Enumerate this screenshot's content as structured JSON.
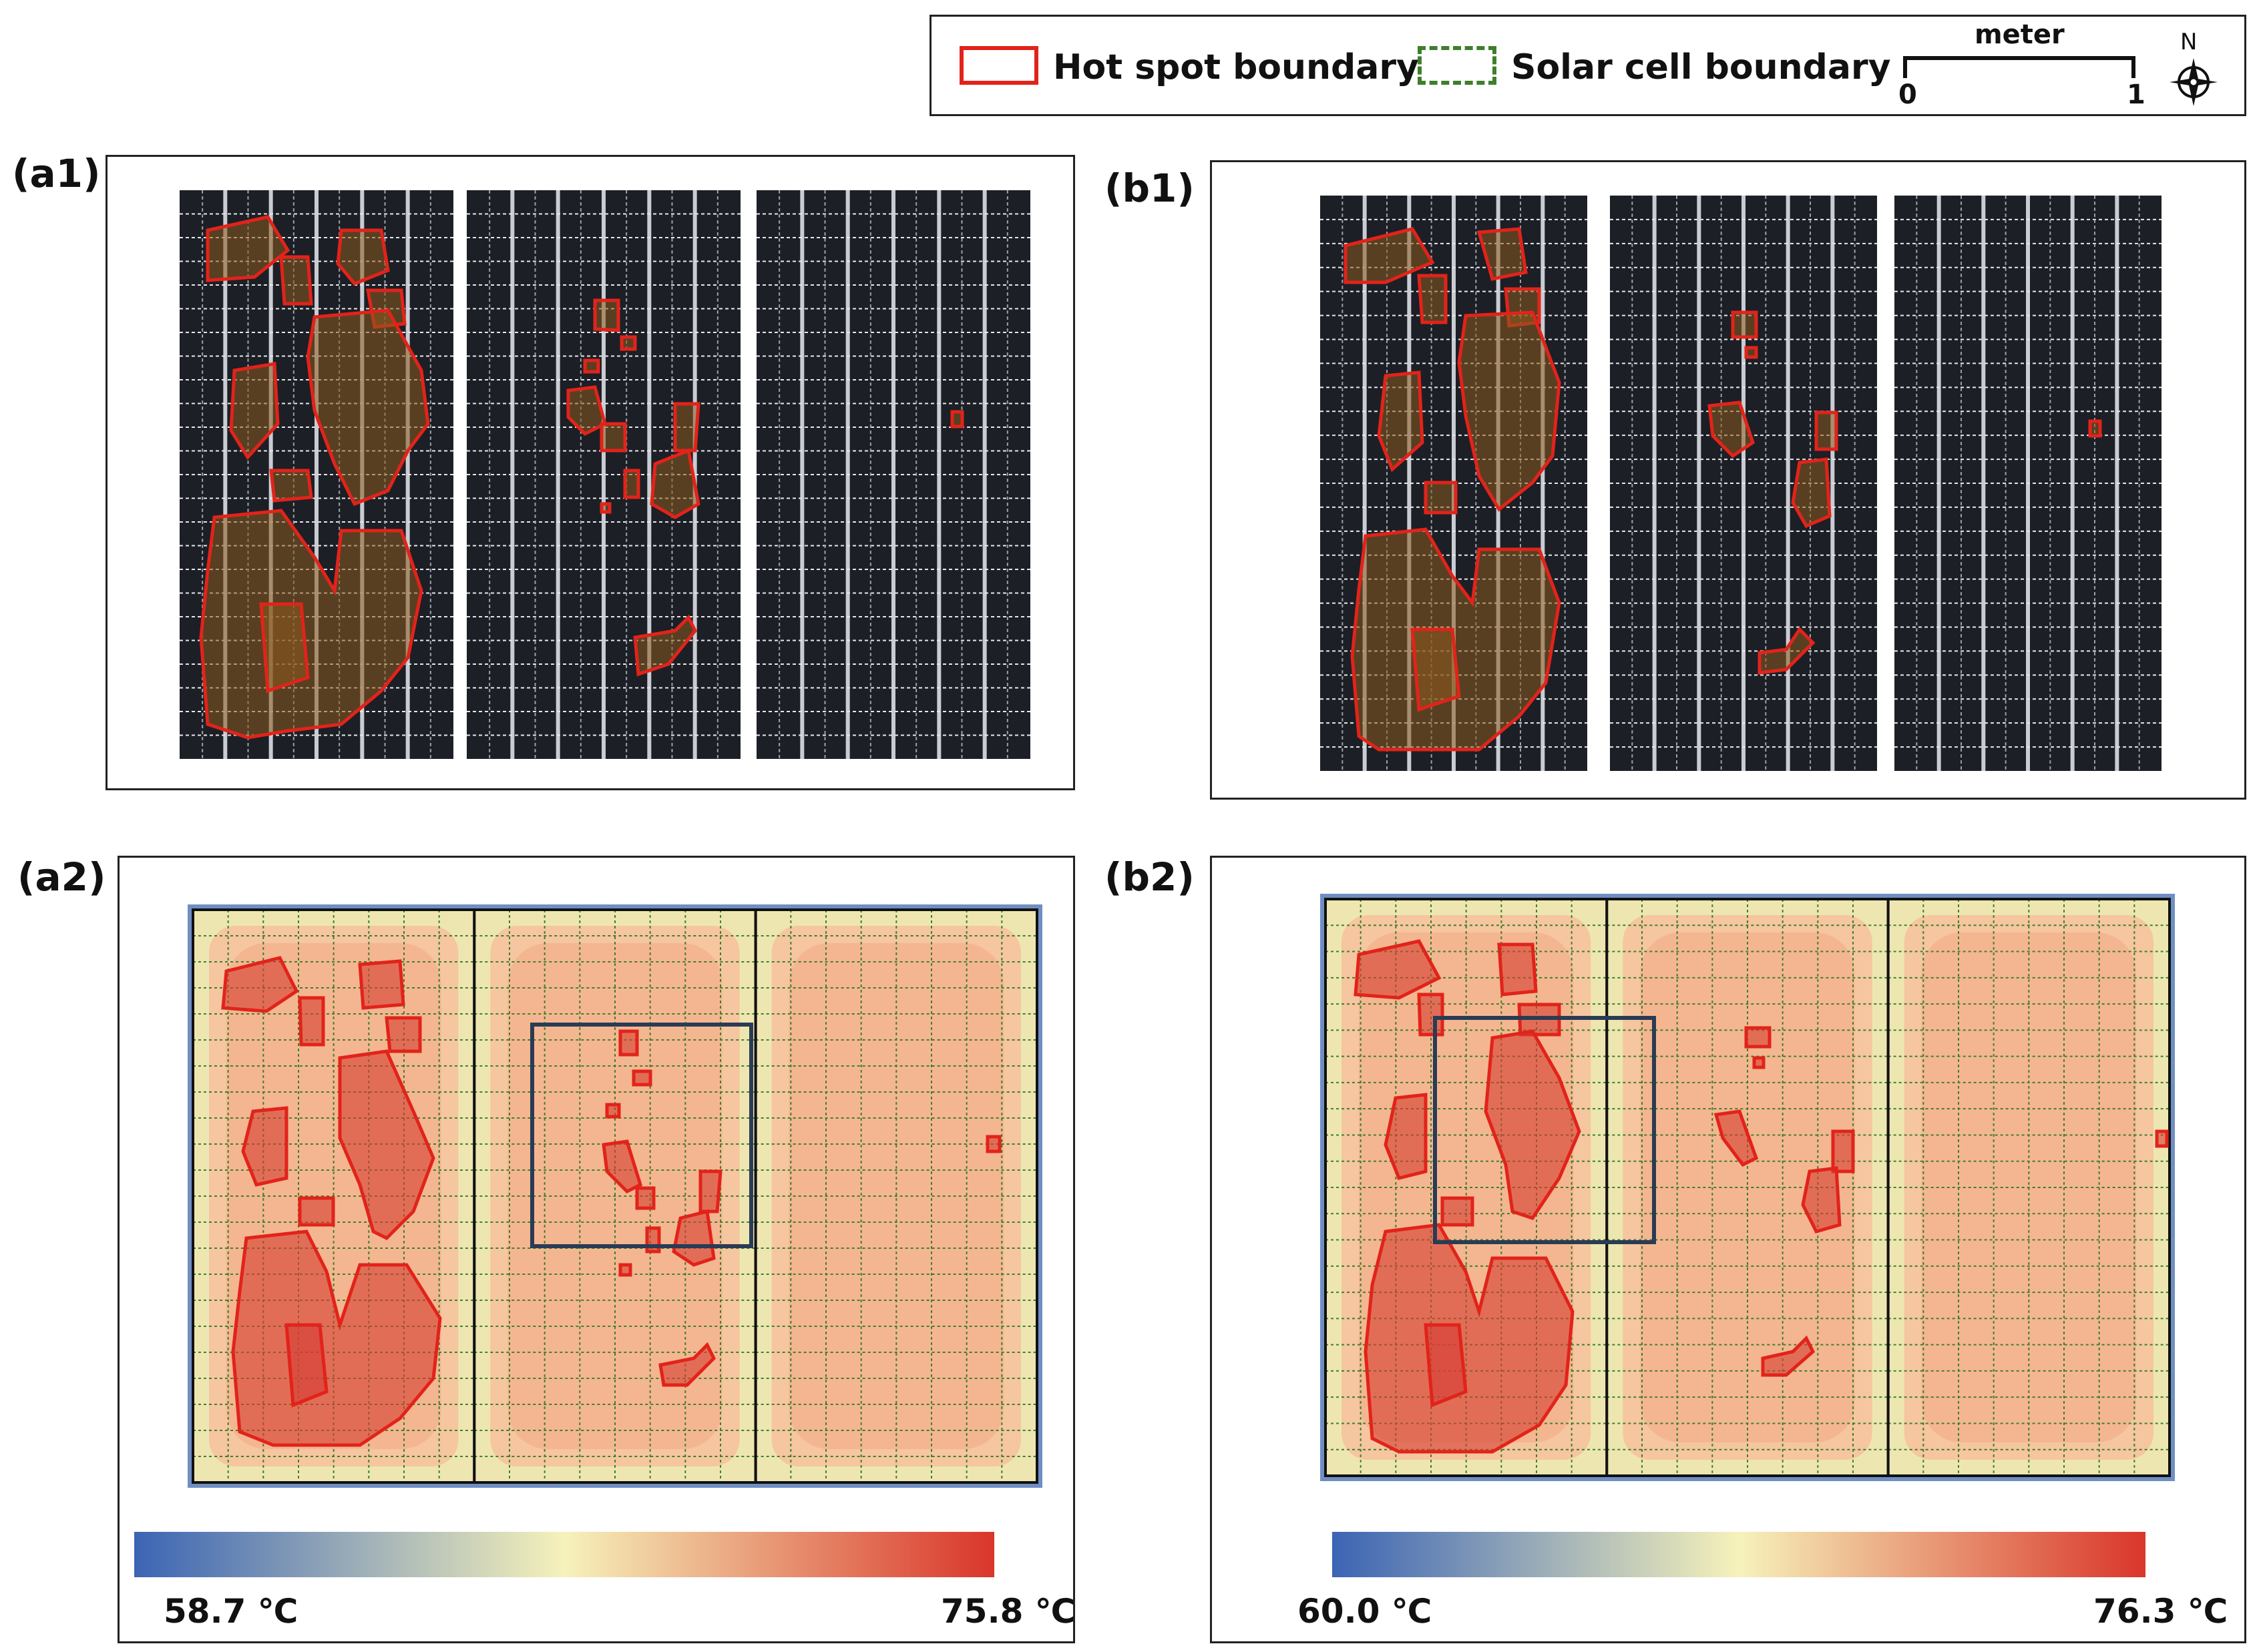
{
  "legend": {
    "hot_spot_label": "Hot spot boundary",
    "solar_cell_label": "Solar cell boundary",
    "scale_unit": "meter",
    "scale_min": "0",
    "scale_max": "1",
    "north_label": "N"
  },
  "panels": {
    "a1": {
      "label": "(a1)"
    },
    "b1": {
      "label": "(b1)"
    },
    "a2": {
      "label": "(a2)",
      "temp_min": "58.7 ℃",
      "temp_max": "75.8 ℃"
    },
    "b2": {
      "label": "(b2)",
      "temp_min": "60.0 ℃",
      "temp_max": "76.3 ℃"
    }
  },
  "colors": {
    "hot_spot": "#e2231a",
    "cell_grid": "#3f7f2c",
    "cold": "#3b64b4",
    "mid": "#f6f2bb",
    "hot": "#d9362a"
  }
}
